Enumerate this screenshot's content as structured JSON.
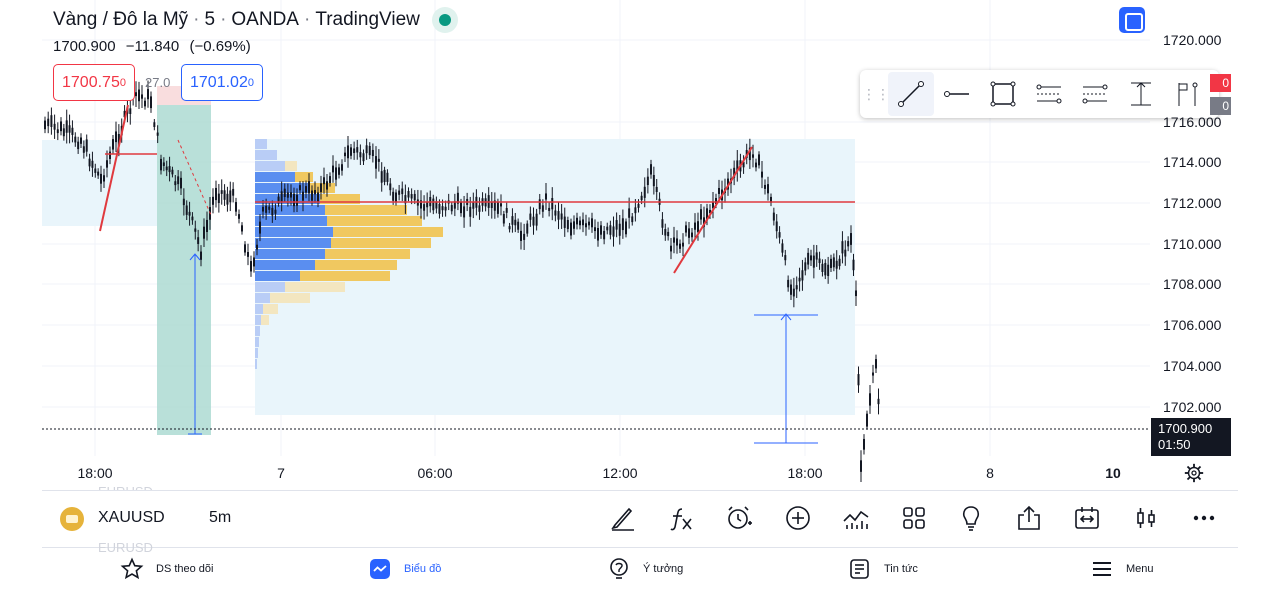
{
  "header": {
    "symbol_name": "Vàng / Đô la Mỹ",
    "interval": "5",
    "broker": "OANDA",
    "platform": "TradingView",
    "last_price": "1700.900",
    "change": "−11.840",
    "change_pct": "(−0.69%)"
  },
  "order": {
    "sell_price": "1700.75",
    "sell_sup": "0",
    "spread": "27.0",
    "buy_price": "1701.02",
    "buy_sup": "0"
  },
  "price_scale": [
    "1720.000",
    "1716.000",
    "1714.000",
    "1712.000",
    "1710.000",
    "1708.000",
    "1706.000",
    "1704.000",
    "1702.000"
  ],
  "price_tags": {
    "red": "0",
    "gray": "0"
  },
  "current_price": {
    "value": "1700.900",
    "countdown": "01:50"
  },
  "time_axis": [
    {
      "label": "18:00",
      "bold": false
    },
    {
      "label": "7",
      "bold": false
    },
    {
      "label": "06:00",
      "bold": false
    },
    {
      "label": "12:00",
      "bold": false
    },
    {
      "label": "18:00",
      "bold": false
    },
    {
      "label": "8",
      "bold": false
    },
    {
      "label": "10",
      "bold": true
    }
  ],
  "drawing_tools": [
    "trend-line-icon",
    "horizontal-ray-icon",
    "rectangle-icon",
    "parallel-channel-icon",
    "regression-channel-icon",
    "price-range-icon",
    "flag-icon"
  ],
  "symbol_bar": {
    "symbol": "XAUUSD",
    "interval": "5m",
    "ghost_top": "EURUSD",
    "ghost_bottom": "EURUSD",
    "tools": [
      "brush-icon",
      "indicators-icon",
      "alert-icon",
      "add-icon",
      "compare-icon",
      "layout-icon",
      "ideas-icon",
      "share-icon",
      "replay-icon",
      "candles-icon",
      "more-icon"
    ]
  },
  "bottom_nav": [
    {
      "label": "DS theo dõi",
      "icon": "star-icon",
      "active": false
    },
    {
      "label": "Biểu đồ",
      "icon": "chart-icon",
      "active": true
    },
    {
      "label": "Ý tưởng",
      "icon": "bulb-icon",
      "active": false
    },
    {
      "label": "Tin tức",
      "icon": "news-icon",
      "active": false
    },
    {
      "label": "Menu",
      "icon": "menu-icon",
      "active": false
    }
  ],
  "colors": {
    "up": "#131722",
    "down": "#131722",
    "trend_line": "#e0393e",
    "accent": "#2962ff",
    "volume_profile_blue": "#5a8ef0",
    "volume_profile_yellow": "#f0c860",
    "range_fill": "#e6f4fa",
    "position_green": "#a7d8cf"
  }
}
